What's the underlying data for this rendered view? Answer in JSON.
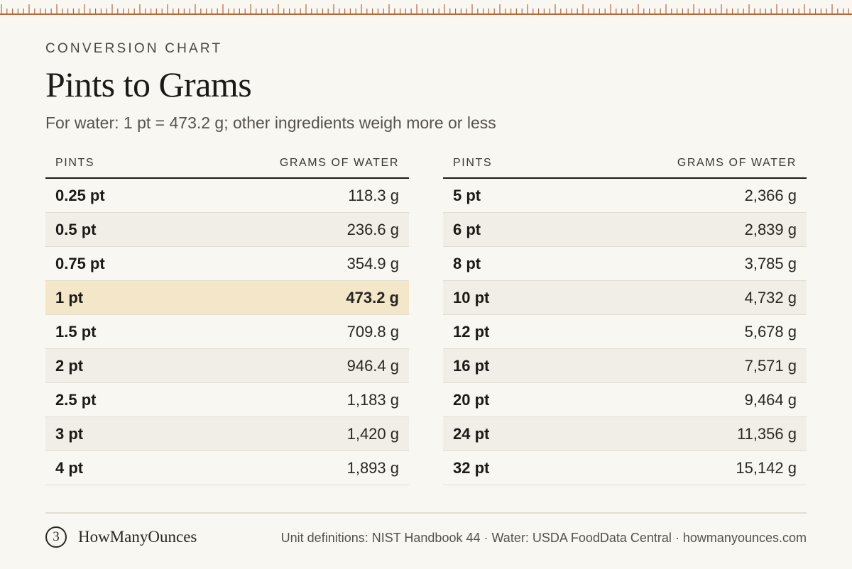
{
  "header": {
    "eyebrow": "CONVERSION CHART",
    "title": "Pints to Grams",
    "subtitle": "For water: 1 pt = 473.2 g; other ingredients weigh more or less"
  },
  "table": {
    "col_pints": "PINTS",
    "col_grams": "GRAMS OF WATER",
    "highlight_color": "#f3e6c9",
    "left": [
      {
        "pints": "0.25 pt",
        "grams": "118.3 g",
        "highlight": false
      },
      {
        "pints": "0.5 pt",
        "grams": "236.6 g",
        "highlight": false
      },
      {
        "pints": "0.75 pt",
        "grams": "354.9 g",
        "highlight": false
      },
      {
        "pints": "1 pt",
        "grams": "473.2 g",
        "highlight": true
      },
      {
        "pints": "1.5 pt",
        "grams": "709.8 g",
        "highlight": false
      },
      {
        "pints": "2 pt",
        "grams": "946.4 g",
        "highlight": false
      },
      {
        "pints": "2.5 pt",
        "grams": "1,183 g",
        "highlight": false
      },
      {
        "pints": "3 pt",
        "grams": "1,420 g",
        "highlight": false
      },
      {
        "pints": "4 pt",
        "grams": "1,893 g",
        "highlight": false
      }
    ],
    "right": [
      {
        "pints": "5 pt",
        "grams": "2,366 g",
        "highlight": false
      },
      {
        "pints": "6 pt",
        "grams": "2,839 g",
        "highlight": false
      },
      {
        "pints": "8 pt",
        "grams": "3,785 g",
        "highlight": false
      },
      {
        "pints": "10 pt",
        "grams": "4,732 g",
        "highlight": false
      },
      {
        "pints": "12 pt",
        "grams": "5,678 g",
        "highlight": false
      },
      {
        "pints": "16 pt",
        "grams": "7,571 g",
        "highlight": false
      },
      {
        "pints": "20 pt",
        "grams": "9,464 g",
        "highlight": false
      },
      {
        "pints": "24 pt",
        "grams": "11,356 g",
        "highlight": false
      },
      {
        "pints": "32 pt",
        "grams": "15,142 g",
        "highlight": false
      }
    ]
  },
  "footer": {
    "brand_mark": "3",
    "brand_name": "HowManyOunces",
    "source": "Unit definitions: NIST Handbook 44 · Water: USDA FoodData Central · howmanyounces.com"
  },
  "ruler": {
    "icon": "ruler-ticks",
    "color": "#b5673a"
  }
}
